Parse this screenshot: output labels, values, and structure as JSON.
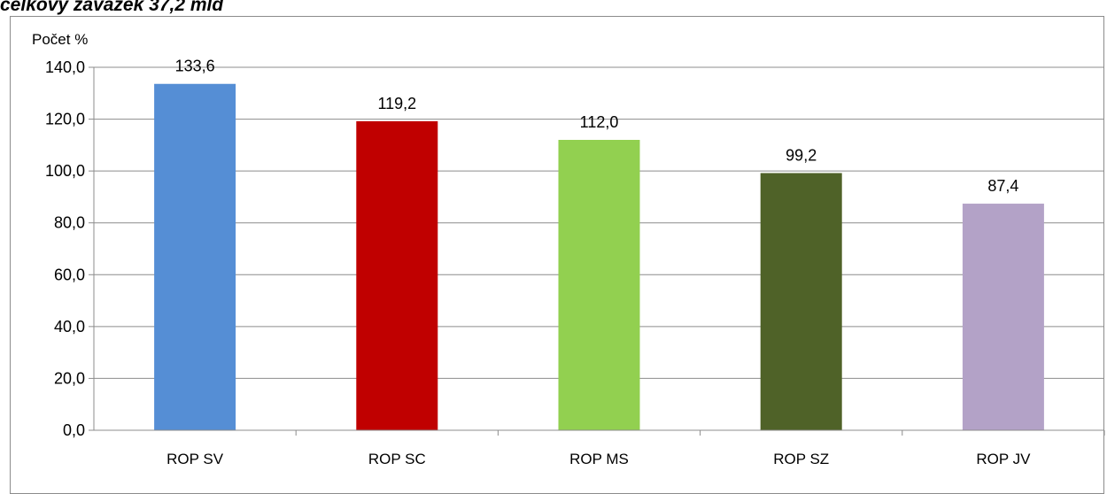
{
  "page": {
    "title": "celkový závazek 37,2 mld"
  },
  "colors": {
    "gridline": "#8c8c8c",
    "axis": "#8c8c8c",
    "frame": "#8c8c8c"
  },
  "chart_data": {
    "type": "bar",
    "title": "",
    "xlabel": "",
    "ylabel": "Počet %",
    "ylim": [
      0,
      140
    ],
    "ytick_step": 20,
    "yticks": [
      "0,0",
      "20,0",
      "40,0",
      "60,0",
      "80,0",
      "100,0",
      "120,0",
      "140,0"
    ],
    "grid": true,
    "legend": "none",
    "categories": [
      "ROP SV",
      "ROP SC",
      "ROP MS",
      "ROP SZ",
      "ROP JV"
    ],
    "values": [
      133.6,
      119.2,
      112.0,
      99.2,
      87.4
    ],
    "value_labels": [
      "133,6",
      "119,2",
      "112,0",
      "99,2",
      "87,4"
    ],
    "bar_colors": [
      "#558ed5",
      "#c00000",
      "#92d050",
      "#4f6228",
      "#b3a2c7"
    ]
  }
}
